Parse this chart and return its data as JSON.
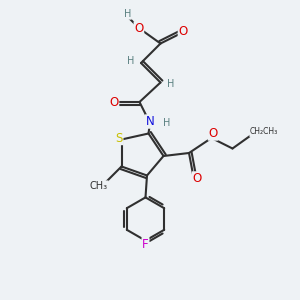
{
  "background_color": "#eef2f5",
  "atom_colors": {
    "C": "#303030",
    "H": "#5a8080",
    "O": "#dd0000",
    "N": "#1010dd",
    "S": "#c8c000",
    "F": "#cc00cc"
  },
  "bond_color": "#303030",
  "bond_width": 1.5,
  "font_size_atom": 8.5,
  "font_size_small": 7.0
}
